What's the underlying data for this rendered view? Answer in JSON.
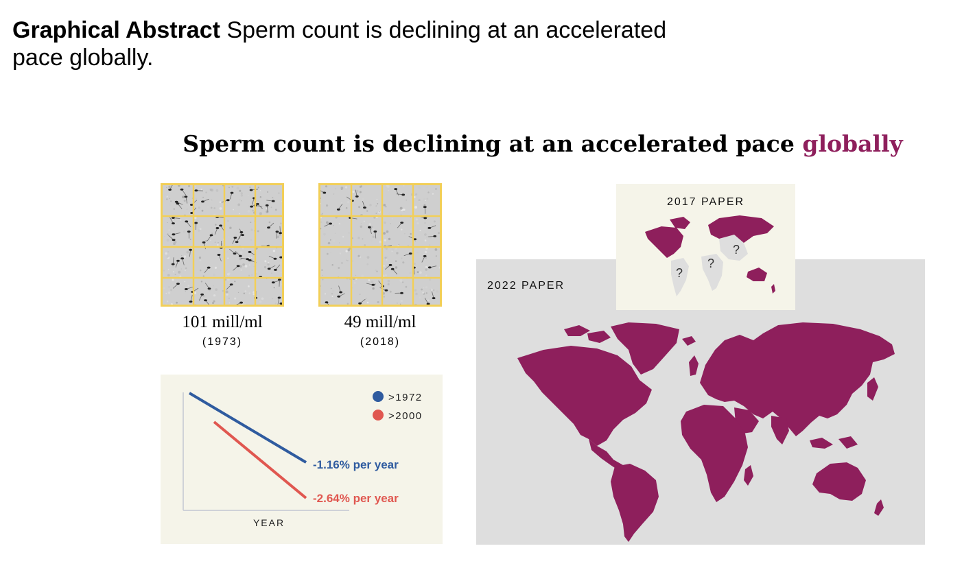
{
  "heading": {
    "bold": "Graphical Abstract",
    "line1_rest": "Sperm count is declining at an accelerated",
    "line2": "pace globally."
  },
  "abstract_title": {
    "text": "Sperm count is declining at an accelerated pace",
    "accent": "globally",
    "accent_color": "#8e1f5c"
  },
  "samples": [
    {
      "value": "101 mill/ml",
      "year": "(1973)"
    },
    {
      "value": "49 mill/ml",
      "year": "(2018)"
    }
  ],
  "trend": {
    "legend": [
      {
        "label": ">1972",
        "color": "#2f5b9f"
      },
      {
        "label": ">2000",
        "color": "#e05750"
      }
    ],
    "rates": [
      "-1.16% per year",
      "-2.64% per year"
    ],
    "xlabel": "YEAR"
  },
  "maps": {
    "paper_2017": "2017 PAPER",
    "paper_2022": "2022 PAPER",
    "question_mark": "?",
    "land_color": "#8e1f5c",
    "unknown_color": "#dedede"
  }
}
